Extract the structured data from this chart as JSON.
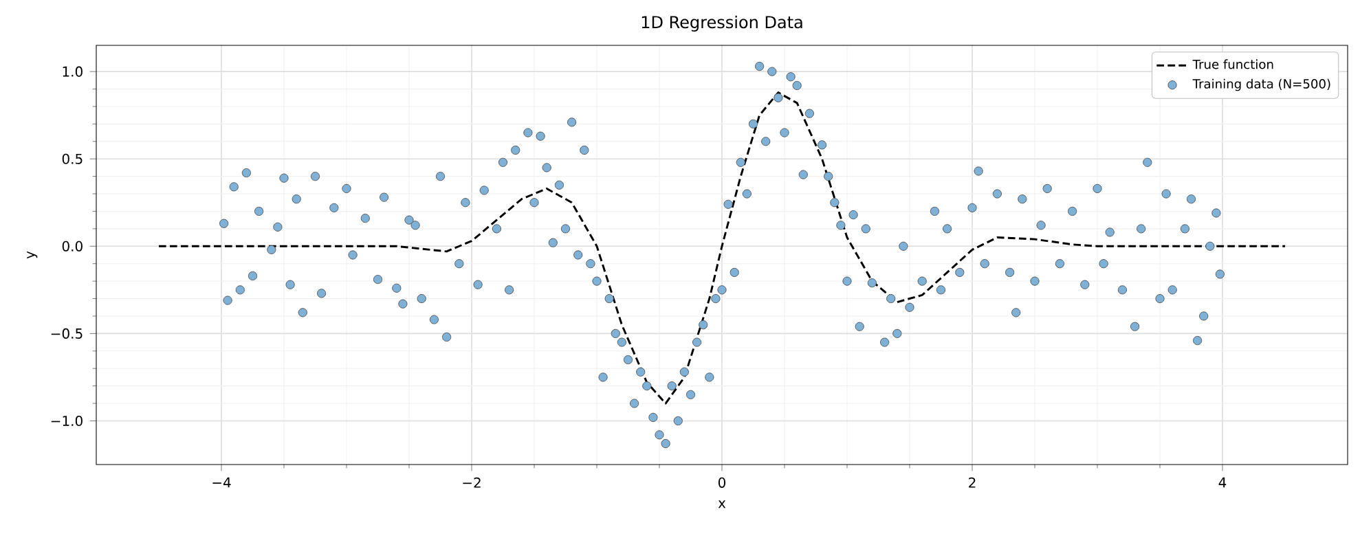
{
  "chart_data": {
    "type": "scatter",
    "title": "1D Regression Data",
    "xlabel": "x",
    "ylabel": "y",
    "xlim": [
      -5,
      5
    ],
    "ylim": [
      -1.25,
      1.15
    ],
    "xticks": [
      {
        "value": -4,
        "label": "−4"
      },
      {
        "value": -2,
        "label": "−2"
      },
      0,
      2,
      4
    ],
    "yticks": [
      {
        "value": -1,
        "label": "−1.0"
      },
      {
        "value": -0.5,
        "label": "−0.5"
      },
      {
        "value": 0,
        "label": "0.0"
      },
      {
        "value": 0.5,
        "label": "0.5"
      },
      {
        "value": 1,
        "label": "1.0"
      }
    ],
    "grid": true,
    "legend": "top right",
    "series": [
      {
        "name": "True function",
        "type": "line",
        "color": "#000000",
        "line_style": "dashed",
        "marker": "none",
        "x": [
          -4.5,
          -4.0,
          -3.5,
          -3.0,
          -2.6,
          -2.2,
          -2.0,
          -1.8,
          -1.6,
          -1.4,
          -1.2,
          -1.0,
          -0.8,
          -0.6,
          -0.45,
          -0.3,
          -0.1,
          0.0,
          0.15,
          0.3,
          0.45,
          0.6,
          0.8,
          1.0,
          1.2,
          1.4,
          1.6,
          1.8,
          2.0,
          2.2,
          2.5,
          2.8,
          3.0,
          3.5,
          4.0,
          4.5
        ],
        "values": [
          0.0,
          0.0,
          0.0,
          0.0,
          0.0,
          -0.03,
          0.03,
          0.15,
          0.27,
          0.33,
          0.25,
          0.0,
          -0.45,
          -0.78,
          -0.9,
          -0.75,
          -0.3,
          0.0,
          0.4,
          0.75,
          0.88,
          0.82,
          0.5,
          0.05,
          -0.2,
          -0.32,
          -0.28,
          -0.15,
          -0.02,
          0.05,
          0.04,
          0.01,
          0.0,
          0.0,
          0.0,
          0.0
        ]
      },
      {
        "name": "Training data (N=500)",
        "color": "#7fb0d5",
        "marker": "circle",
        "x": [
          -3.98,
          -3.95,
          -3.9,
          -3.85,
          -3.8,
          -3.75,
          -3.7,
          -3.6,
          -3.55,
          -3.5,
          -3.45,
          -3.4,
          -3.35,
          -3.25,
          -3.2,
          -3.1,
          -3.0,
          -2.95,
          -2.85,
          -2.75,
          -2.7,
          -2.6,
          -2.55,
          -2.5,
          -2.45,
          -2.4,
          -2.3,
          -2.25,
          -2.2,
          -2.1,
          -2.05,
          -1.95,
          -1.9,
          -1.8,
          -1.75,
          -1.7,
          -1.65,
          -1.55,
          -1.5,
          -1.45,
          -1.4,
          -1.35,
          -1.3,
          -1.25,
          -1.2,
          -1.15,
          -1.1,
          -1.05,
          -1.0,
          -0.95,
          -0.9,
          -0.85,
          -0.8,
          -0.75,
          -0.7,
          -0.65,
          -0.6,
          -0.55,
          -0.5,
          -0.45,
          -0.4,
          -0.35,
          -0.3,
          -0.25,
          -0.2,
          -0.15,
          -0.1,
          -0.05,
          0.0,
          0.05,
          0.1,
          0.15,
          0.2,
          0.25,
          0.3,
          0.35,
          0.4,
          0.45,
          0.5,
          0.55,
          0.6,
          0.65,
          0.7,
          0.8,
          0.85,
          0.9,
          0.95,
          1.0,
          1.05,
          1.1,
          1.15,
          1.2,
          1.3,
          1.35,
          1.4,
          1.45,
          1.5,
          1.6,
          1.7,
          1.75,
          1.8,
          1.9,
          2.0,
          2.05,
          2.1,
          2.2,
          2.3,
          2.35,
          2.4,
          2.5,
          2.55,
          2.6,
          2.7,
          2.8,
          2.9,
          3.0,
          3.05,
          3.1,
          3.2,
          3.3,
          3.35,
          3.4,
          3.5,
          3.55,
          3.6,
          3.7,
          3.75,
          3.8,
          3.85,
          3.9,
          3.95,
          3.98
        ],
        "values": [
          0.13,
          -0.31,
          0.34,
          -0.25,
          0.42,
          -0.17,
          0.2,
          -0.02,
          0.11,
          0.39,
          -0.22,
          0.27,
          -0.38,
          0.4,
          -0.27,
          0.22,
          0.33,
          -0.05,
          0.16,
          -0.19,
          0.28,
          -0.24,
          -0.33,
          0.15,
          0.12,
          -0.3,
          -0.42,
          0.4,
          -0.52,
          -0.1,
          0.25,
          -0.22,
          0.32,
          0.1,
          0.48,
          -0.25,
          0.55,
          0.65,
          0.25,
          0.63,
          0.45,
          0.02,
          0.35,
          0.1,
          0.71,
          -0.05,
          0.55,
          -0.1,
          -0.2,
          -0.75,
          -0.3,
          -0.5,
          -0.55,
          -0.65,
          -0.9,
          -0.72,
          -0.8,
          -0.98,
          -1.08,
          -1.13,
          -0.8,
          -1.0,
          -0.72,
          -0.85,
          -0.55,
          -0.45,
          -0.75,
          -0.3,
          -0.25,
          0.24,
          -0.15,
          0.48,
          0.3,
          0.7,
          1.03,
          0.6,
          1.0,
          0.85,
          0.65,
          0.97,
          0.92,
          0.41,
          0.76,
          0.58,
          0.4,
          0.25,
          0.12,
          -0.2,
          0.18,
          -0.46,
          0.1,
          -0.21,
          -0.55,
          -0.3,
          -0.5,
          0.0,
          -0.35,
          -0.2,
          0.2,
          -0.25,
          0.1,
          -0.15,
          0.22,
          0.43,
          -0.1,
          0.3,
          -0.15,
          -0.38,
          0.27,
          -0.2,
          0.12,
          0.33,
          -0.1,
          0.2,
          -0.22,
          0.33,
          -0.1,
          0.08,
          -0.25,
          -0.46,
          0.1,
          0.48,
          -0.3,
          0.3,
          -0.25,
          0.1,
          0.27,
          -0.54,
          -0.4,
          0.0,
          0.19,
          -0.16
        ]
      }
    ]
  }
}
